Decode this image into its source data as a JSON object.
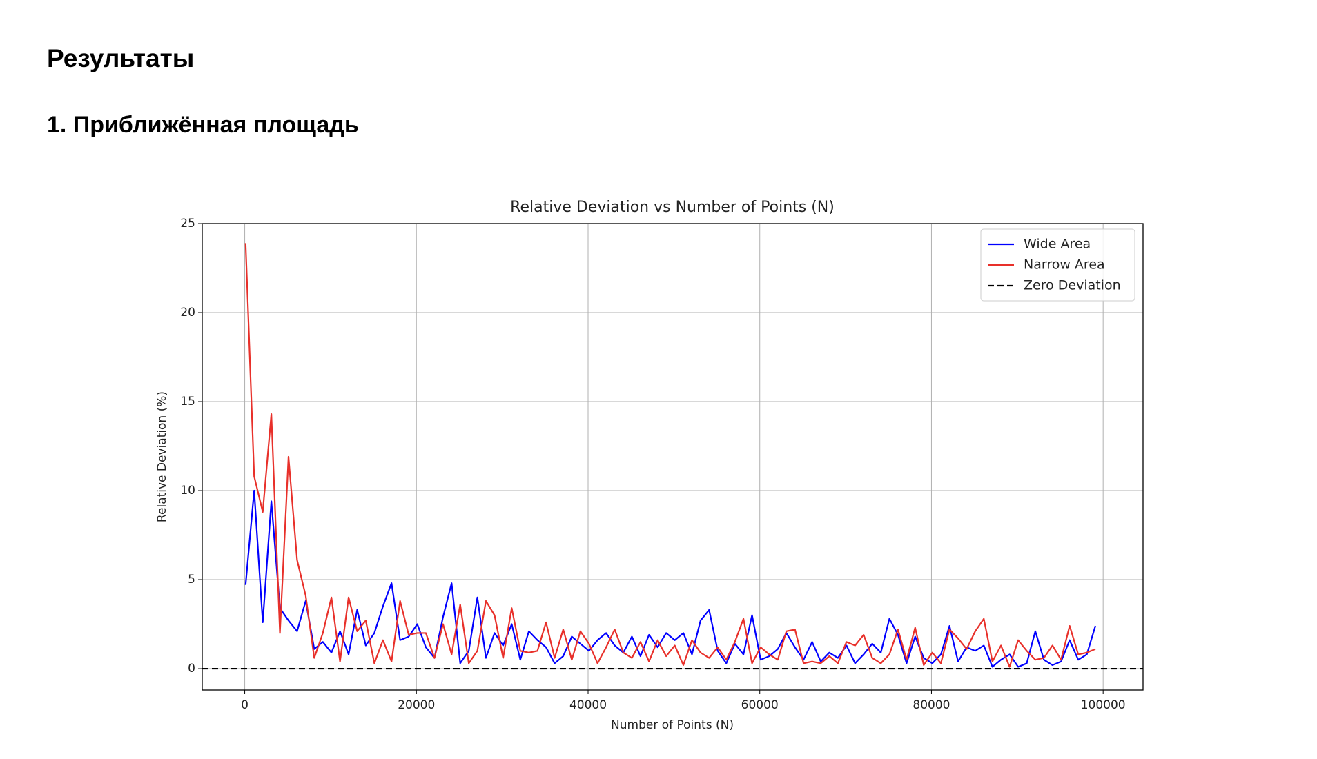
{
  "document": {
    "heading": "Результаты",
    "subheading": "1. Приближённая площадь"
  },
  "chart_data": {
    "type": "line",
    "title": "Relative Deviation vs Number of Points (N)",
    "x_label": "Number of Points (N)",
    "y_label": "Relative Deviation (%)",
    "x": [
      100,
      1100,
      2100,
      3100,
      4100,
      5100,
      6100,
      7100,
      8100,
      9100,
      10100,
      11100,
      12100,
      13100,
      14100,
      15100,
      16100,
      17100,
      18100,
      19100,
      20100,
      21100,
      22100,
      23100,
      24100,
      25100,
      26100,
      27100,
      28100,
      29100,
      30100,
      31100,
      32100,
      33100,
      34100,
      35100,
      36100,
      37100,
      38100,
      39100,
      40100,
      41100,
      42100,
      43100,
      44100,
      45100,
      46100,
      47100,
      48100,
      49100,
      50100,
      51100,
      52100,
      53100,
      54100,
      55100,
      56100,
      57100,
      58100,
      59100,
      60100,
      61100,
      62100,
      63100,
      64100,
      65100,
      66100,
      67100,
      68100,
      69100,
      70100,
      71100,
      72100,
      73100,
      74100,
      75100,
      76100,
      77100,
      78100,
      79100,
      80100,
      81100,
      82100,
      83100,
      84100,
      85100,
      86100,
      87100,
      88100,
      89100,
      90100,
      91100,
      92100,
      93100,
      94100,
      95100,
      96100,
      97100,
      98100,
      99100
    ],
    "series": [
      {
        "name": "Wide Area",
        "color": "#0000ff",
        "values": [
          4.7,
          10.0,
          2.6,
          9.4,
          3.4,
          2.7,
          2.1,
          3.8,
          1.1,
          1.5,
          0.9,
          2.1,
          0.8,
          3.3,
          1.3,
          2.0,
          3.5,
          4.8,
          1.6,
          1.8,
          2.5,
          1.2,
          0.6,
          2.9,
          4.8,
          0.3,
          1.0,
          4.0,
          0.6,
          2.0,
          1.3,
          2.5,
          0.5,
          2.1,
          1.6,
          1.2,
          0.3,
          0.7,
          1.8,
          1.4,
          1.0,
          1.6,
          2.0,
          1.3,
          0.9,
          1.8,
          0.7,
          1.9,
          1.2,
          2.0,
          1.6,
          2.0,
          0.8,
          2.7,
          3.3,
          1.0,
          0.3,
          1.4,
          0.8,
          3.0,
          0.5,
          0.7,
          1.1,
          2.0,
          1.2,
          0.5,
          1.5,
          0.4,
          0.9,
          0.6,
          1.3,
          0.3,
          0.8,
          1.4,
          0.9,
          2.8,
          1.9,
          0.3,
          1.8,
          0.6,
          0.3,
          0.8,
          2.4,
          0.4,
          1.2,
          1.0,
          1.3,
          0.1,
          0.5,
          0.8,
          0.1,
          0.3,
          2.1,
          0.5,
          0.2,
          0.4,
          1.6,
          0.5,
          0.8,
          2.4
        ]
      },
      {
        "name": "Narrow Area",
        "color": "#e8302a",
        "values": [
          23.9,
          10.8,
          8.8,
          14.3,
          2.0,
          11.9,
          6.1,
          4.1,
          0.6,
          2.0,
          4.0,
          0.4,
          4.0,
          2.1,
          2.7,
          0.3,
          1.6,
          0.4,
          3.8,
          1.9,
          2.0,
          2.0,
          0.6,
          2.5,
          0.8,
          3.6,
          0.3,
          1.0,
          3.8,
          3.0,
          0.6,
          3.4,
          1.0,
          0.9,
          1.0,
          2.6,
          0.6,
          2.2,
          0.5,
          2.1,
          1.4,
          0.3,
          1.2,
          2.2,
          0.9,
          0.6,
          1.5,
          0.4,
          1.6,
          0.7,
          1.3,
          0.2,
          1.6,
          0.9,
          0.6,
          1.2,
          0.5,
          1.5,
          2.8,
          0.3,
          1.2,
          0.8,
          0.5,
          2.1,
          2.2,
          0.3,
          0.4,
          0.3,
          0.7,
          0.3,
          1.5,
          1.3,
          1.9,
          0.6,
          0.3,
          0.8,
          2.2,
          0.5,
          2.3,
          0.2,
          0.9,
          0.3,
          2.2,
          1.7,
          1.1,
          2.1,
          2.8,
          0.4,
          1.3,
          0.1,
          1.6,
          1.0,
          0.5,
          0.6,
          1.3,
          0.5,
          2.4,
          0.8,
          0.9,
          1.1
        ]
      }
    ],
    "reference_lines": [
      {
        "name": "Zero Deviation",
        "color": "#000000",
        "value": 0,
        "style": "dashed"
      }
    ],
    "xlim": [
      -4950,
      104650
    ],
    "ylim": [
      -1.2,
      25
    ],
    "xticks": [
      0,
      20000,
      40000,
      60000,
      80000,
      100000
    ],
    "yticks": [
      0,
      5,
      10,
      15,
      20,
      25
    ],
    "grid": true,
    "legend": "upper right"
  }
}
